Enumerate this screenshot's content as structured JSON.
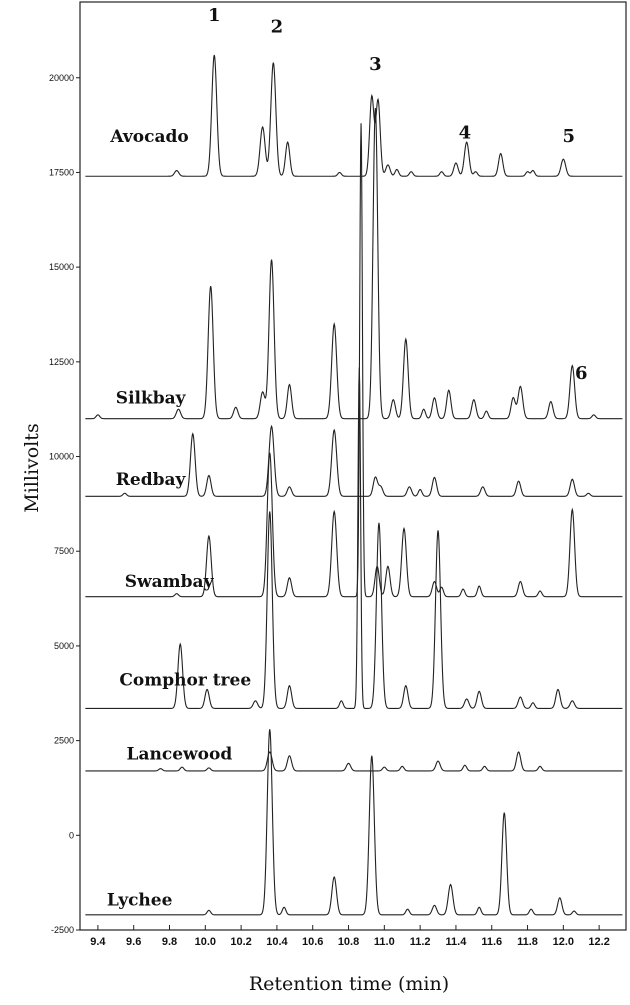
{
  "chart_data": {
    "type": "line",
    "xlabel": "Retention time (min)",
    "ylabel": "Millivolts",
    "xlim": [
      9.3,
      12.35
    ],
    "ylim": [
      -2500,
      22000
    ],
    "x_ticks": [
      9.4,
      9.6,
      9.8,
      10.0,
      10.2,
      10.4,
      10.6,
      10.8,
      11.0,
      11.2,
      11.4,
      11.6,
      11.8,
      12.0,
      12.2
    ],
    "y_ticks": [
      -2500,
      0,
      2500,
      5000,
      7500,
      10000,
      12500,
      15000,
      17500,
      20000
    ],
    "peak_labels": [
      {
        "text": "1",
        "x": 10.05,
        "y": 21500
      },
      {
        "text": "2",
        "x": 10.4,
        "y": 21200
      },
      {
        "text": "3",
        "x": 10.95,
        "y": 20200
      },
      {
        "text": "4",
        "x": 11.45,
        "y": 18400
      },
      {
        "text": "5",
        "x": 12.03,
        "y": 18300
      },
      {
        "text": "6",
        "x": 12.1,
        "y": 12050
      }
    ],
    "series": [
      {
        "name": "Avocado",
        "baseline": 17400,
        "label_x": 9.47,
        "label_y": 18300,
        "peaks": [
          [
            9.84,
            150,
            0.012
          ],
          [
            10.05,
            3200,
            0.014
          ],
          [
            10.32,
            1300,
            0.014
          ],
          [
            10.38,
            3000,
            0.014
          ],
          [
            10.46,
            900,
            0.012
          ],
          [
            10.75,
            100,
            0.01
          ],
          [
            10.93,
            2100,
            0.012
          ],
          [
            10.965,
            2000,
            0.012
          ],
          [
            11.02,
            300,
            0.012
          ],
          [
            11.07,
            180,
            0.01
          ],
          [
            11.15,
            120,
            0.01
          ],
          [
            11.32,
            120,
            0.01
          ],
          [
            11.4,
            350,
            0.012
          ],
          [
            11.46,
            900,
            0.013
          ],
          [
            11.51,
            120,
            0.01
          ],
          [
            11.65,
            600,
            0.012
          ],
          [
            11.8,
            120,
            0.01
          ],
          [
            11.83,
            150,
            0.01
          ],
          [
            12.0,
            450,
            0.013
          ]
        ]
      },
      {
        "name": "Silkbay",
        "baseline": 11000,
        "label_x": 9.5,
        "label_y": 11400,
        "peaks": [
          [
            9.4,
            100,
            0.01
          ],
          [
            9.85,
            250,
            0.012
          ],
          [
            10.03,
            3500,
            0.014
          ],
          [
            10.17,
            300,
            0.012
          ],
          [
            10.32,
            700,
            0.013
          ],
          [
            10.37,
            4200,
            0.014
          ],
          [
            10.47,
            900,
            0.012
          ],
          [
            10.72,
            2500,
            0.014
          ],
          [
            10.95,
            8200,
            0.013
          ],
          [
            11.05,
            500,
            0.012
          ],
          [
            11.12,
            2100,
            0.013
          ],
          [
            11.22,
            250,
            0.01
          ],
          [
            11.28,
            550,
            0.012
          ],
          [
            11.36,
            750,
            0.012
          ],
          [
            11.5,
            500,
            0.012
          ],
          [
            11.57,
            200,
            0.01
          ],
          [
            11.72,
            550,
            0.012
          ],
          [
            11.76,
            850,
            0.013
          ],
          [
            11.93,
            450,
            0.012
          ],
          [
            12.05,
            1400,
            0.013
          ],
          [
            12.17,
            100,
            0.01
          ]
        ]
      },
      {
        "name": "Redbay",
        "baseline": 8950,
        "label_x": 9.5,
        "label_y": 9250,
        "peaks": [
          [
            9.55,
            80,
            0.01
          ],
          [
            9.93,
            1650,
            0.013
          ],
          [
            10.02,
            550,
            0.012
          ],
          [
            10.37,
            1850,
            0.014
          ],
          [
            10.47,
            250,
            0.012
          ],
          [
            10.72,
            1750,
            0.014
          ],
          [
            10.95,
            500,
            0.012
          ],
          [
            10.98,
            250,
            0.012
          ],
          [
            11.14,
            250,
            0.012
          ],
          [
            11.2,
            180,
            0.01
          ],
          [
            11.28,
            500,
            0.012
          ],
          [
            11.55,
            250,
            0.012
          ],
          [
            11.75,
            400,
            0.012
          ],
          [
            12.05,
            450,
            0.012
          ],
          [
            12.14,
            80,
            0.01
          ]
        ]
      },
      {
        "name": "Swambay",
        "baseline": 6300,
        "label_x": 9.55,
        "label_y": 6550,
        "peaks": [
          [
            9.84,
            80,
            0.01
          ],
          [
            10.02,
            1600,
            0.013
          ],
          [
            10.36,
            3800,
            0.014
          ],
          [
            10.47,
            500,
            0.012
          ],
          [
            10.72,
            2250,
            0.014
          ],
          [
            10.87,
            12500,
            0.0075
          ],
          [
            10.96,
            800,
            0.012
          ],
          [
            11.02,
            800,
            0.012
          ],
          [
            11.11,
            1800,
            0.013
          ],
          [
            11.28,
            400,
            0.012
          ],
          [
            11.32,
            250,
            0.01
          ],
          [
            11.44,
            200,
            0.01
          ],
          [
            11.53,
            280,
            0.01
          ],
          [
            11.76,
            400,
            0.012
          ],
          [
            11.87,
            150,
            0.01
          ],
          [
            12.05,
            2300,
            0.013
          ]
        ]
      },
      {
        "name": "Comphor tree",
        "baseline": 3350,
        "label_x": 9.52,
        "label_y": 3950,
        "peaks": [
          [
            9.86,
            1700,
            0.013
          ],
          [
            10.01,
            500,
            0.012
          ],
          [
            10.28,
            200,
            0.012
          ],
          [
            10.36,
            5200,
            0.014
          ],
          [
            10.47,
            600,
            0.012
          ],
          [
            10.76,
            200,
            0.01
          ],
          [
            10.86,
            9000,
            0.0075
          ],
          [
            10.97,
            4900,
            0.014
          ],
          [
            11.12,
            600,
            0.012
          ],
          [
            11.3,
            4700,
            0.014
          ],
          [
            11.46,
            250,
            0.012
          ],
          [
            11.53,
            450,
            0.012
          ],
          [
            11.76,
            300,
            0.012
          ],
          [
            11.83,
            150,
            0.01
          ],
          [
            11.97,
            500,
            0.012
          ],
          [
            12.05,
            200,
            0.012
          ]
        ]
      },
      {
        "name": "Lancewood",
        "baseline": 1700,
        "label_x": 9.56,
        "label_y": 2000,
        "peaks": [
          [
            9.75,
            60,
            0.01
          ],
          [
            9.87,
            100,
            0.01
          ],
          [
            10.02,
            80,
            0.01
          ],
          [
            10.36,
            500,
            0.013
          ],
          [
            10.47,
            400,
            0.012
          ],
          [
            10.8,
            200,
            0.012
          ],
          [
            11.0,
            100,
            0.01
          ],
          [
            11.1,
            120,
            0.01
          ],
          [
            11.3,
            260,
            0.012
          ],
          [
            11.45,
            150,
            0.01
          ],
          [
            11.56,
            120,
            0.01
          ],
          [
            11.75,
            500,
            0.012
          ],
          [
            11.87,
            120,
            0.01
          ]
        ]
      },
      {
        "name": "Lychee",
        "baseline": -2100,
        "label_x": 9.45,
        "label_y": -1850,
        "peaks": [
          [
            10.02,
            120,
            0.01
          ],
          [
            10.36,
            4900,
            0.014
          ],
          [
            10.44,
            200,
            0.01
          ],
          [
            10.72,
            1000,
            0.013
          ],
          [
            10.93,
            4200,
            0.014
          ],
          [
            11.13,
            150,
            0.01
          ],
          [
            11.28,
            250,
            0.012
          ],
          [
            11.37,
            800,
            0.013
          ],
          [
            11.53,
            200,
            0.01
          ],
          [
            11.67,
            2700,
            0.013
          ],
          [
            11.82,
            150,
            0.01
          ],
          [
            11.98,
            450,
            0.012
          ],
          [
            12.06,
            100,
            0.01
          ]
        ]
      }
    ]
  }
}
